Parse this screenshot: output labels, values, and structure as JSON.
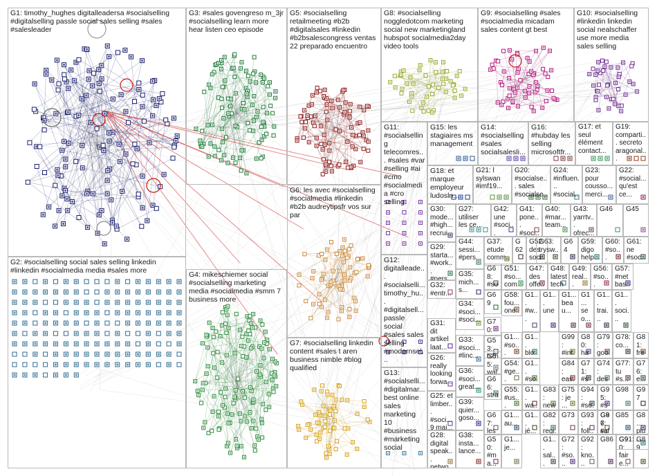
{
  "groups": [
    {
      "id": "G1",
      "label": "G1: timothy_hughes digitalleadersa #socialselling #digitalselling passle social sales selling #sales #salesleader",
      "color": "#1b1f6b"
    },
    {
      "id": "G2",
      "label": "G2: #socialselling social sales selling linkedin #linkedin #socialmedia media #sales more",
      "color": "#2c6a8f"
    },
    {
      "id": "G3",
      "label": "G3: #sales govengreso m_3jr #socialselling learn more hear listen ceo episode",
      "color": "#1f7a3a"
    },
    {
      "id": "G4",
      "label": "G4: mikeschiemer social #socialselling marketing media #socialmedia #smm 7 business more",
      "color": "#2e8b3c"
    },
    {
      "id": "G5",
      "label": "G5: #socialselling retailmeeting #b2b #digitalsales #linkedin #b2bsalescongress ventas 22 preparado encuentro",
      "color": "#8b1a1a"
    },
    {
      "id": "G6",
      "label": "G6: les avec #socialselling #socialmedia #linkedin #b2b audreytipsfr vos sur par",
      "color": "#c98a3a"
    },
    {
      "id": "G7",
      "label": "G7: #socialselling linkedin content #sales t aren business nimble #blog qualified",
      "color": "#d4a017"
    },
    {
      "id": "G8",
      "label": "G8: #socialselling noggledotcom marketing social new marketingland hubspot socialmedia2day video tools",
      "color": "#9aa82a"
    },
    {
      "id": "G9",
      "label": "G9: #socialselling #sales #socialmedia micadam sales content gt best",
      "color": "#b0177a"
    },
    {
      "id": "G10",
      "label": "G10: #socialselling #linkedin linkedin social nealschaffer use more media sales selling",
      "color": "#6b2a8f"
    },
    {
      "id": "G11",
      "label": "G11: #socialselling telecomres... #sales #var #selling #ai #cmo #socialmedia #cro selling",
      "color": "#7a3aa8"
    },
    {
      "id": "G12",
      "label": "G12: digitallеade... #socialselli... timothy_hu... #digitalsell... passle social #sales sales selling #modernsel...",
      "color": "#3a3a8f"
    },
    {
      "id": "G13",
      "label": "G13: #socialselli... #digitalmar... best online sales marketing 10 #business #marketing social",
      "color": "#3a7a9f"
    },
    {
      "id": "G14",
      "label": "G14: #socialselling #sales socialsalesli...",
      "color": "#5a3a9f"
    },
    {
      "id": "G15",
      "label": "G15: les stagiaires ms management",
      "color": "#2a5a8f"
    },
    {
      "id": "G16",
      "label": "G16: #hubday les selling microsoftfr...",
      "color": "#7a3a3a"
    },
    {
      "id": "G17",
      "label": "G17: et seul élément contact...",
      "color": "#3a8f5a"
    },
    {
      "id": "G18",
      "label": "G18: et marque employeur ludosln...",
      "color": "#1a3a8f"
    },
    {
      "id": "G19",
      "label": "G19: comparti... secreto aragonal...",
      "color": "#8f3a1a"
    },
    {
      "id": "G20",
      "label": "G20: #socialse... sales #socialse...",
      "color": "#3a6a3a"
    },
    {
      "id": "G21",
      "label": "G21: l sylswan #imf19...",
      "color": "#5a8f3a"
    },
    {
      "id": "G22",
      "label": "G22: #social... qu'est ce...",
      "color": "#8f1a5a"
    },
    {
      "id": "G23",
      "label": "G23: pour cousso... merci...",
      "color": "#3a5a8f"
    },
    {
      "id": "G24",
      "label": "G24: #influen... #social...",
      "color": "#2a7a8f"
    },
    {
      "id": "G25",
      "label": "G25: et limber... #soci... 9 mai...",
      "color": "#4a4a8f"
    },
    {
      "id": "G26",
      "label": "G26: really looking forwa...",
      "color": "#6a3a8f"
    },
    {
      "id": "G27",
      "label": "G27: utiliser les ce...",
      "color": "#3a8f8f"
    },
    {
      "id": "G28",
      "label": "G28: digital speak... netwo...",
      "color": "#8f6a3a"
    },
    {
      "id": "G29",
      "label": "G29: starta... #work... #pers...",
      "color": "#1a6a3a"
    },
    {
      "id": "G30",
      "label": "G30: mode... #high... recrui...",
      "color": "#3a3a6a"
    },
    {
      "id": "G31",
      "label": "G31: dit artikel laat...",
      "color": "#5a1a8f"
    },
    {
      "id": "G32",
      "label": "G32: #entr... #rh tous...",
      "color": "#8f3a6a"
    },
    {
      "id": "G33",
      "label": "G33: #soci... #linc...",
      "color": "#3a6a8f"
    },
    {
      "id": "G34",
      "label": "G34: #soci... #soci...",
      "color": "#6a8f3a"
    },
    {
      "id": "G35",
      "label": "G35: mich... s...",
      "color": "#3a1a6a"
    },
    {
      "id": "G36",
      "label": "G36: #soci... great...",
      "color": "#1a8f6a"
    },
    {
      "id": "G37",
      "label": "G37: etude comm...",
      "color": "#6a6a1a"
    },
    {
      "id": "G38",
      "label": "G38: insta... lance...",
      "color": "#8f1a1a"
    },
    {
      "id": "G39",
      "label": "G39: quier... goso...",
      "color": "#1a1a8f"
    },
    {
      "id": "G40",
      "label": "G40: #mar... team...",
      "color": "#3a8f3a"
    },
    {
      "id": "G41",
      "label": "G41: pone... #soci...",
      "color": "#8f3a3a"
    },
    {
      "id": "G42",
      "label": "G42: une #soci...",
      "color": "#3a3a8f"
    },
    {
      "id": "G43",
      "label": "G43: yarrtv... ofrec...",
      "color": "#6a3a3a"
    },
    {
      "id": "G44",
      "label": "G44: sessi... #pers...",
      "color": "#3a6a6a"
    },
    {
      "id": "G45",
      "label": "G45",
      "color": "#8f3a8f"
    },
    {
      "id": "G46",
      "label": "G46",
      "color": "#3a8f6a"
    },
    {
      "id": "G47",
      "label": "G47: des offe...",
      "color": "#6a1a3a"
    },
    {
      "id": "G48",
      "label": "G48: latest tech",
      "color": "#1a6a8f"
    },
    {
      "id": "G49",
      "label": "G49: real... loop...",
      "color": "#8f6a1a"
    },
    {
      "id": "G50",
      "label": "G50: #ma... #gr...",
      "color": "#6a1a6a"
    },
    {
      "id": "G51",
      "label": "G51: #so... com...",
      "color": "#1a8f3a"
    },
    {
      "id": "G52",
      "label": "G52: des soci...",
      "color": "#3a1a1a"
    },
    {
      "id": "G53",
      "label": "G53: b2b blo...",
      "color": "#1a3a6a"
    },
    {
      "id": "G54",
      "label": "G54: #ge... #bl...",
      "color": "#6a6a3a"
    },
    {
      "id": "G55",
      "label": "G55: #us... infl...",
      "color": "#3a6a1a"
    },
    {
      "id": "G56",
      "label": "G56: #so... sal...",
      "color": "#8f1a3a"
    },
    {
      "id": "G57",
      "label": "G57: #net bas...",
      "color": "#1a1a6a"
    },
    {
      "id": "G58",
      "label": "G58: fou... one...",
      "color": "#6a3a1a"
    },
    {
      "id": "G59",
      "label": "G59: digo help...",
      "color": "#1a6a6a"
    },
    {
      "id": "G60",
      "label": "G60: #so...",
      "color": "#6a1a1a"
    },
    {
      "id": "G61",
      "label": "G61: ne #soc...",
      "color": "#1a3a3a"
    },
    {
      "id": "G62",
      "label": "G62",
      "color": "#3a1a3a"
    },
    {
      "id": "G63",
      "label": "G63: trysw... talki...",
      "color": "#3a3a1a"
    },
    {
      "id": "G64",
      "label": "G64",
      "color": "#1a1a3a"
    },
    {
      "id": "G65",
      "label": "G65: wat... hpe...",
      "color": "#6a6a6a"
    },
    {
      "id": "G66",
      "label": "G66: strat... razo...",
      "color": "#3a6a3a"
    },
    {
      "id": "G67",
      "label": "G67: les #hu...",
      "color": "#6a3a6a"
    },
    {
      "id": "G68",
      "label": "G68: #so... com...",
      "color": "#3a3a3a"
    },
    {
      "id": "G69",
      "label": "G69",
      "color": "#1a6a1a"
    },
    {
      "id": "G70",
      "label": "G70: exa... usin...",
      "color": "#6a1a6a"
    },
    {
      "id": "G71",
      "label": "G71: #so... #so...",
      "color": "#1a1a1a"
    },
    {
      "id": "G72",
      "label": "G72: #so... #so...",
      "color": "#3a1a6a"
    },
    {
      "id": "G73",
      "label": "G73",
      "color": "#6a3a3a"
    },
    {
      "id": "G74",
      "label": "G74: des #so...",
      "color": "#3a6a6a"
    },
    {
      "id": "G75",
      "label": "G75: je ...",
      "color": "#6a6a1a"
    },
    {
      "id": "G76",
      "label": "G76: e...",
      "color": "#1a3a1a"
    },
    {
      "id": "G77",
      "label": "G77: tu #s...",
      "color": "#3a1a1a"
    },
    {
      "id": "G78",
      "label": "G78: co...",
      "color": "#1a1a3a"
    },
    {
      "id": "G79",
      "label": "G79: goo...",
      "color": "#6a1a3a"
    },
    {
      "id": "G80",
      "label": "G80: hac...",
      "color": "#3a3a6a"
    },
    {
      "id": "G81",
      "label": "G81: free...",
      "color": "#6a3a1a"
    },
    {
      "id": "G82",
      "label": "G82: regi...",
      "color": "#1a6a3a"
    },
    {
      "id": "G83",
      "label": "G83: new",
      "color": "#3a6a1a"
    },
    {
      "id": "G84",
      "label": "G84: eas...",
      "color": "#6a1a1a"
    },
    {
      "id": "G85",
      "label": "G85",
      "color": "#1a3a6a"
    },
    {
      "id": "G86",
      "label": "G86",
      "color": "#3a1a3a"
    },
    {
      "id": "G87",
      "label": "G87: #so...",
      "color": "#6a6a3a"
    },
    {
      "id": "G88",
      "label": "G8... plu...",
      "color": "#1a1a6a"
    },
    {
      "id": "G89",
      "label": "G89",
      "color": "#3a3a1a"
    },
    {
      "id": "G90",
      "label": "G90: faire...",
      "color": "#6a3a6a"
    },
    {
      "id": "G91",
      "label": "G91: ...",
      "color": "#1a6a6a"
    },
    {
      "id": "G92",
      "label": "G92: kno...",
      "color": "#3a6a3a"
    },
    {
      "id": "G93",
      "label": "G93: foll...",
      "color": "#6a1a6a"
    },
    {
      "id": "G94",
      "label": "G94: #so...",
      "color": "#1a3a3a"
    },
    {
      "id": "G95",
      "label": "G95: #so...",
      "color": "#3a1a6a"
    },
    {
      "id": "G96",
      "label": "G96: sale...",
      "color": "#6a3a3a"
    },
    {
      "id": "G97",
      "label": "G97",
      "color": "#1a1a1a"
    },
    {
      "id": "G98",
      "label": "G98",
      "color": "#3a6a6a"
    },
    {
      "id": "G99",
      "label": "G99: #int...",
      "color": "#6a6a1a"
    },
    {
      "id": "G1x",
      "label": "G1... soci...",
      "color": "#1a3a1a"
    },
    {
      "id": "G1y",
      "label": "G1... beau...",
      "color": "#3a1a1a"
    },
    {
      "id": "G1z",
      "label": "G1... trai...",
      "color": "#1a1a3a"
    },
    {
      "id": "G1w",
      "label": "G1... seo...",
      "color": "#6a1a3a"
    },
    {
      "id": "G1v",
      "label": "G1... #w...",
      "color": "#3a3a6a"
    },
    {
      "id": "G1u",
      "label": "G1... #so...",
      "color": "#6a3a1a"
    },
    {
      "id": "G1t",
      "label": "G1... blo...",
      "color": "#1a6a3a"
    },
    {
      "id": "G1s",
      "label": "G1... #so...",
      "color": "#3a6a1a"
    },
    {
      "id": "G1r",
      "label": "G1... wa...",
      "color": "#6a1a1a"
    },
    {
      "id": "G1q",
      "label": "G1... au...",
      "color": "#1a3a6a"
    },
    {
      "id": "G1p",
      "label": "G1... sal...",
      "color": "#3a1a3a"
    },
    {
      "id": "G1o",
      "label": "G1... je...",
      "color": "#6a6a3a"
    },
    {
      "id": "G1n",
      "label": "G1... une",
      "color": "#1a1a6a"
    },
    {
      "id": "G1m",
      "label": "G1... jé...",
      "color": "#3a3a1a"
    }
  ]
}
